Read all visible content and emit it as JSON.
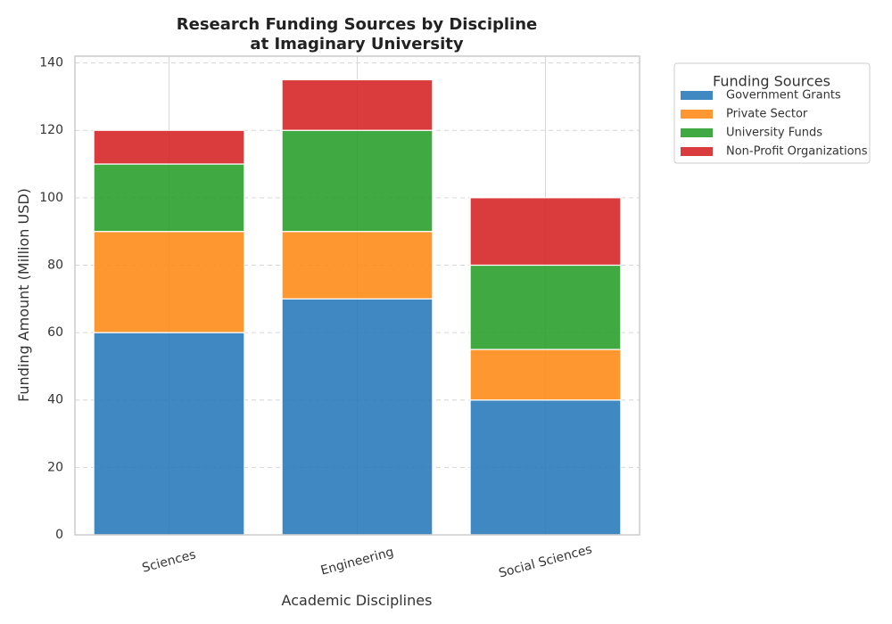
{
  "chart_data": {
    "type": "bar",
    "stacked": true,
    "title_lines": [
      "Research Funding Sources by Discipline",
      "at Imaginary University"
    ],
    "xlabel": "Academic Disciplines",
    "ylabel": "Funding Amount (Million USD)",
    "ylim": [
      0,
      142
    ],
    "yticks": [
      0,
      20,
      40,
      60,
      80,
      100,
      120,
      140
    ],
    "categories": [
      "Sciences",
      "Engineering",
      "Social Sciences"
    ],
    "series": [
      {
        "name": "Government Grants",
        "color": "#2b7bba",
        "values": [
          60,
          70,
          40
        ]
      },
      {
        "name": "Private Sector",
        "color": "#ff8c1a",
        "values": [
          30,
          20,
          15
        ]
      },
      {
        "name": "University Funds",
        "color": "#2ca02c",
        "values": [
          20,
          30,
          25
        ]
      },
      {
        "name": "Non-Profit Organizations",
        "color": "#d62728",
        "values": [
          10,
          15,
          20
        ]
      }
    ],
    "legend": {
      "title": "Funding Sources",
      "placement": "outside-right"
    },
    "grid": {
      "y": true,
      "x": true,
      "style": "dashed"
    }
  }
}
